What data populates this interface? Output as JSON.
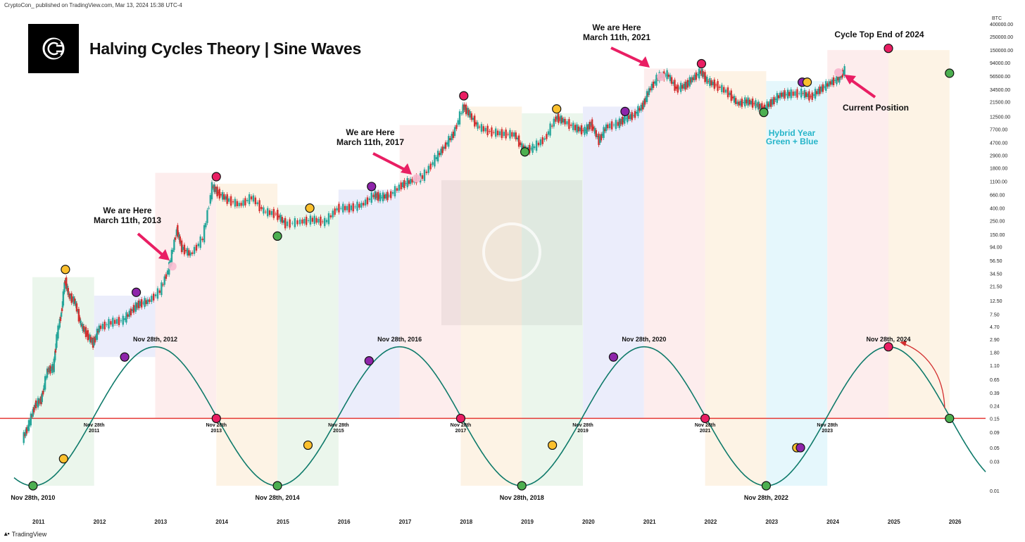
{
  "header": {
    "published_line": "CryptoCon_ published on TradingView.com, Mar 13, 2024 15:38 UTC-4",
    "title": "Halving Cycles Theory | Sine Waves",
    "brand": "TradingView",
    "currency": "BTC"
  },
  "chart_data": {
    "type": "line",
    "title": "Halving Cycles Theory | Sine Waves",
    "y_scale": "log",
    "x_range": [
      2010.6,
      2026.5
    ],
    "y_range": [
      0.01,
      400000
    ],
    "x_tick_labels": [
      "2011",
      "2012",
      "2013",
      "2014",
      "2015",
      "2016",
      "2017",
      "2018",
      "2019",
      "2020",
      "2021",
      "2022",
      "2023",
      "2024",
      "2025",
      "2026"
    ],
    "y_tick_labels": [
      "400000.00",
      "250000.00",
      "150000.00",
      "94000.00",
      "56500.00",
      "34500.00",
      "21500.00",
      "12500.00",
      "7700.00",
      "4700.00",
      "2900.00",
      "1800.00",
      "1100.00",
      "660.00",
      "400.00",
      "250.00",
      "150.00",
      "94.00",
      "56.50",
      "34.50",
      "21.50",
      "12.50",
      "7.50",
      "4.70",
      "2.90",
      "1.80",
      "1.10",
      "0.65",
      "0.39",
      "0.24",
      "0.15",
      "0.09",
      "0.05",
      "0.03",
      "0.01"
    ],
    "series": [
      {
        "name": "BTC",
        "type": "price",
        "points": [
          [
            2010.75,
            0.07
          ],
          [
            2010.85,
            0.12
          ],
          [
            2010.95,
            0.25
          ],
          [
            2011.05,
            0.3
          ],
          [
            2011.15,
            0.9
          ],
          [
            2011.25,
            1.0
          ],
          [
            2011.3,
            3.0
          ],
          [
            2011.38,
            8.0
          ],
          [
            2011.44,
            28
          ],
          [
            2011.5,
            15
          ],
          [
            2011.6,
            12
          ],
          [
            2011.7,
            5
          ],
          [
            2011.8,
            3.5
          ],
          [
            2011.9,
            2.5
          ],
          [
            2012.0,
            4.5
          ],
          [
            2012.2,
            5.5
          ],
          [
            2012.4,
            6.0
          ],
          [
            2012.55,
            9.0
          ],
          [
            2012.65,
            11.0
          ],
          [
            2012.8,
            12.0
          ],
          [
            2013.0,
            18.0
          ],
          [
            2013.15,
            45
          ],
          [
            2013.27,
            180
          ],
          [
            2013.35,
            90
          ],
          [
            2013.5,
            70
          ],
          [
            2013.7,
            130
          ],
          [
            2013.85,
            900
          ],
          [
            2013.95,
            700
          ],
          [
            2014.1,
            550
          ],
          [
            2014.3,
            450
          ],
          [
            2014.5,
            600
          ],
          [
            2014.7,
            350
          ],
          [
            2014.9,
            320
          ],
          [
            2015.05,
            220
          ],
          [
            2015.3,
            240
          ],
          [
            2015.5,
            260
          ],
          [
            2015.7,
            235
          ],
          [
            2015.9,
            400
          ],
          [
            2016.1,
            400
          ],
          [
            2016.3,
            450
          ],
          [
            2016.5,
            650
          ],
          [
            2016.6,
            600
          ],
          [
            2016.75,
            640
          ],
          [
            2016.95,
            950
          ],
          [
            2017.1,
            1100
          ],
          [
            2017.3,
            1300
          ],
          [
            2017.5,
            2500
          ],
          [
            2017.65,
            4000
          ],
          [
            2017.8,
            6500
          ],
          [
            2017.96,
            18000
          ],
          [
            2018.05,
            14000
          ],
          [
            2018.2,
            8500
          ],
          [
            2018.4,
            7000
          ],
          [
            2018.6,
            6500
          ],
          [
            2018.8,
            6300
          ],
          [
            2018.95,
            3500
          ],
          [
            2019.1,
            3800
          ],
          [
            2019.3,
            5500
          ],
          [
            2019.48,
            12000
          ],
          [
            2019.6,
            10500
          ],
          [
            2019.8,
            8000
          ],
          [
            2019.95,
            7200
          ],
          [
            2020.05,
            9500
          ],
          [
            2020.18,
            5000
          ],
          [
            2020.3,
            8500
          ],
          [
            2020.5,
            9500
          ],
          [
            2020.6,
            11500
          ],
          [
            2020.75,
            13000
          ],
          [
            2020.9,
            19000
          ],
          [
            2021.0,
            33000
          ],
          [
            2021.15,
            55000
          ],
          [
            2021.3,
            60000
          ],
          [
            2021.45,
            35000
          ],
          [
            2021.6,
            40000
          ],
          [
            2021.7,
            50000
          ],
          [
            2021.85,
            67000
          ],
          [
            2021.95,
            47000
          ],
          [
            2022.1,
            40000
          ],
          [
            2022.3,
            30000
          ],
          [
            2022.45,
            20000
          ],
          [
            2022.6,
            22000
          ],
          [
            2022.75,
            19500
          ],
          [
            2022.87,
            16500
          ],
          [
            2023.0,
            21000
          ],
          [
            2023.15,
            28000
          ],
          [
            2023.3,
            29000
          ],
          [
            2023.5,
            30000
          ],
          [
            2023.65,
            26000
          ],
          [
            2023.8,
            34000
          ],
          [
            2023.95,
            43000
          ],
          [
            2024.1,
            52000
          ],
          [
            2024.2,
            70000
          ]
        ]
      },
      {
        "name": "Sine Wave",
        "type": "sine",
        "period_years": 4,
        "trough_years": [
          2010.91,
          2014.91,
          2018.91,
          2022.91,
          2026.91
        ],
        "peak_years": [
          2012.91,
          2016.91,
          2020.91,
          2024.91
        ],
        "trough_value": 0.012,
        "peak_value": 2.2
      }
    ],
    "annotations": {
      "here_labels": [
        {
          "line1": "We are Here",
          "line2": "March 11th, 2013",
          "x": 2013.19,
          "y": 45
        },
        {
          "line1": "We are Here",
          "line2": "March 11th, 2017",
          "x": 2017.19,
          "y": 1220
        },
        {
          "line1": "We are Here",
          "line2": "March 11th, 2021",
          "x": 2021.19,
          "y": 55000
        }
      ],
      "cycle_top": "Cycle Top End of 2024",
      "current_position": "Current Position",
      "hybrid_line1": "Hybrid Year",
      "hybrid_line2": "Green + Blue",
      "sine_dates_top": [
        {
          "label": "Nov 28th, 2012",
          "x": 2012.91
        },
        {
          "label": "Nov 28th, 2016",
          "x": 2016.91
        },
        {
          "label": "Nov 28th, 2020",
          "x": 2020.91
        },
        {
          "label": "Nov 28th, 2024",
          "x": 2024.91
        }
      ],
      "sine_dates_bottom": [
        {
          "label": "Nov 28th, 2010",
          "x": 2010.91
        },
        {
          "label": "Nov 28th, 2014",
          "x": 2014.91
        },
        {
          "label": "Nov 28th, 2018",
          "x": 2018.91
        },
        {
          "label": "Nov 28th, 2022",
          "x": 2022.91
        }
      ],
      "baseline_labels": [
        {
          "line1": "Nov 28th",
          "line2": "2011",
          "x": 2011.91
        },
        {
          "line1": "Nov 28th",
          "line2": "2013",
          "x": 2013.91
        },
        {
          "line1": "Nov 28th",
          "line2": "2015",
          "x": 2015.91
        },
        {
          "line1": "Nov 28th",
          "line2": "2017",
          "x": 2017.91
        },
        {
          "line1": "Nov 28th",
          "line2": "2019",
          "x": 2019.91
        },
        {
          "line1": "Nov 28th",
          "line2": "2021",
          "x": 2021.91
        },
        {
          "line1": "Nov 28th",
          "line2": "2023",
          "x": 2023.91
        }
      ]
    },
    "baseline_value": 0.15,
    "colors": {
      "price_up": "#26a69a",
      "price_down": "#d32f2f",
      "sine": "#0e7a6a",
      "baseline": "#e53935",
      "green_zone": "#e8f5e9",
      "blue_zone": "#e8eafa",
      "red_zone": "#fdeaea",
      "orange_zone": "#fdf1e1",
      "cyan_zone": "#e0f6fb",
      "dot_green": "#4caf50",
      "dot_yellow": "#fbc02d",
      "dot_purple": "#8e24aa",
      "dot_red": "#e91e63",
      "arrow": "#e91e63",
      "hybrid_text": "#26b5c9"
    },
    "markers": [
      {
        "color": "green",
        "x": 2010.91,
        "y": 0.012
      },
      {
        "color": "yellow",
        "x": 2011.41,
        "y": 0.033
      },
      {
        "color": "purple",
        "x": 2012.41,
        "y": 1.5
      },
      {
        "color": "red",
        "x": 2013.91,
        "y": 0.15
      },
      {
        "color": "green",
        "x": 2014.91,
        "y": 0.012
      },
      {
        "color": "yellow",
        "x": 2015.41,
        "y": 0.055
      },
      {
        "color": "purple",
        "x": 2016.41,
        "y": 1.3
      },
      {
        "color": "red",
        "x": 2017.91,
        "y": 0.15
      },
      {
        "color": "green",
        "x": 2018.91,
        "y": 0.012
      },
      {
        "color": "yellow",
        "x": 2019.41,
        "y": 0.055
      },
      {
        "color": "purple",
        "x": 2020.41,
        "y": 1.5
      },
      {
        "color": "red",
        "x": 2021.91,
        "y": 0.15
      },
      {
        "color": "green",
        "x": 2022.91,
        "y": 0.012
      },
      {
        "color": "yellow",
        "x": 2023.41,
        "y": 0.05
      },
      {
        "color": "purple",
        "x": 2023.47,
        "y": 0.05
      },
      {
        "color": "red",
        "x": 2024.91,
        "y": 2.2
      },
      {
        "color": "green",
        "x": 2025.91,
        "y": 0.15
      },
      {
        "color": "yellow",
        "x": 2011.44,
        "y": 40
      },
      {
        "color": "purple",
        "x": 2012.6,
        "y": 17
      },
      {
        "color": "red",
        "x": 2013.91,
        "y": 1300
      },
      {
        "color": "green",
        "x": 2014.91,
        "y": 140
      },
      {
        "color": "yellow",
        "x": 2015.44,
        "y": 400
      },
      {
        "color": "purple",
        "x": 2016.45,
        "y": 900
      },
      {
        "color": "red",
        "x": 2017.96,
        "y": 27000
      },
      {
        "color": "green",
        "x": 2018.96,
        "y": 3300
      },
      {
        "color": "yellow",
        "x": 2019.48,
        "y": 16500
      },
      {
        "color": "purple",
        "x": 2020.6,
        "y": 15000
      },
      {
        "color": "red",
        "x": 2021.85,
        "y": 90000
      },
      {
        "color": "green",
        "x": 2022.87,
        "y": 14500
      },
      {
        "color": "purple",
        "x": 2023.5,
        "y": 45000
      },
      {
        "color": "yellow",
        "x": 2023.58,
        "y": 45000
      },
      {
        "color": "red",
        "x": 2024.91,
        "y": 160000
      },
      {
        "color": "green",
        "x": 2025.91,
        "y": 63000
      }
    ],
    "zones": [
      {
        "color": "green",
        "x0": 2010.9,
        "x1": 2011.91,
        "y0": 0.012,
        "y1": 30
      },
      {
        "color": "blue",
        "x0": 2011.91,
        "x1": 2012.91,
        "y0": 1.5,
        "y1": 15
      },
      {
        "color": "red",
        "x0": 2012.91,
        "x1": 2013.91,
        "y0": 0.15,
        "y1": 1500
      },
      {
        "color": "orange",
        "x0": 2013.91,
        "x1": 2014.91,
        "y0": 0.012,
        "y1": 1000
      },
      {
        "color": "green",
        "x0": 2014.91,
        "x1": 2015.91,
        "y0": 0.012,
        "y1": 450
      },
      {
        "color": "blue",
        "x0": 2015.91,
        "x1": 2016.91,
        "y0": 0.15,
        "y1": 800
      },
      {
        "color": "red",
        "x0": 2016.91,
        "x1": 2017.91,
        "y0": 0.15,
        "y1": 9000
      },
      {
        "color": "orange",
        "x0": 2017.91,
        "x1": 2018.91,
        "y0": 0.012,
        "y1": 18000
      },
      {
        "color": "green",
        "x0": 2018.91,
        "x1": 2019.91,
        "y0": 0.012,
        "y1": 14000
      },
      {
        "color": "blue",
        "x0": 2019.91,
        "x1": 2020.91,
        "y0": 0.15,
        "y1": 18000
      },
      {
        "color": "red",
        "x0": 2020.91,
        "x1": 2021.91,
        "y0": 0.15,
        "y1": 75000
      },
      {
        "color": "orange",
        "x0": 2021.91,
        "x1": 2022.91,
        "y0": 0.012,
        "y1": 68000
      },
      {
        "color": "cyan",
        "x0": 2022.91,
        "x1": 2023.91,
        "y0": 0.012,
        "y1": 47000
      },
      {
        "color": "red",
        "x0": 2023.91,
        "x1": 2024.91,
        "y0": 0.15,
        "y1": 150000
      },
      {
        "color": "orange",
        "x0": 2024.91,
        "x1": 2025.91,
        "y0": 0.15,
        "y1": 150000
      }
    ]
  }
}
